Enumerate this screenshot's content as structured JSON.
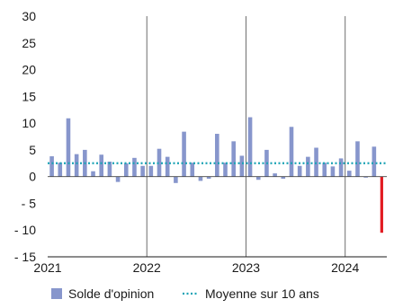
{
  "chart_data": {
    "type": "bar",
    "title": "",
    "xlabel": "",
    "ylabel": "",
    "ylim": [
      -15,
      30
    ],
    "yticks": [
      30,
      25,
      20,
      15,
      10,
      5,
      0,
      -5,
      -10,
      -15
    ],
    "ytick_labels": [
      "30",
      "25",
      "20",
      "15",
      "10",
      "5",
      "0",
      "- 5",
      "- 10",
      "- 15"
    ],
    "xlim": [
      2021,
      2024.42
    ],
    "xticks": [
      2021,
      2022,
      2023,
      2024
    ],
    "xtick_labels": [
      "2021",
      "2022",
      "2023",
      "2024"
    ],
    "grid": "vertical lines at year boundaries",
    "legend_position": "bottom",
    "x": [
      "2021-01",
      "2021-02",
      "2021-03",
      "2021-04",
      "2021-05",
      "2021-06",
      "2021-07",
      "2021-08",
      "2021-09",
      "2021-10",
      "2021-11",
      "2021-12",
      "2022-01",
      "2022-02",
      "2022-03",
      "2022-04",
      "2022-05",
      "2022-06",
      "2022-07",
      "2022-08",
      "2022-09",
      "2022-10",
      "2022-11",
      "2022-12",
      "2023-01",
      "2023-02",
      "2023-03",
      "2023-04",
      "2023-05",
      "2023-06",
      "2023-07",
      "2023-08",
      "2023-09",
      "2023-10",
      "2023-11",
      "2023-12",
      "2024-01",
      "2024-02",
      "2024-03",
      "2024-04",
      "2024-05"
    ],
    "series": [
      {
        "name": "Solde d'opinion",
        "type": "bar",
        "color": "#8796cc",
        "last_bar_color": "#e21b22",
        "values": [
          3.8,
          2.6,
          10.9,
          4.2,
          5.0,
          1.0,
          4.1,
          2.8,
          -1.0,
          2.5,
          3.5,
          2.0,
          2.0,
          5.2,
          3.7,
          -1.2,
          8.4,
          2.6,
          -0.8,
          -0.4,
          8.0,
          2.6,
          6.6,
          3.9,
          11.1,
          -0.6,
          5.0,
          0.6,
          -0.4,
          9.3,
          2.0,
          3.7,
          5.4,
          2.6,
          1.9,
          3.4,
          1.1,
          6.6,
          -0.2,
          5.6,
          -10.5
        ]
      },
      {
        "name": "Moyenne sur 10 ans",
        "type": "line",
        "style": "dotted",
        "color": "#1ba3b5",
        "value": 2.5
      }
    ]
  },
  "legend": [
    {
      "label": "Solde d'opinion",
      "color": "#8796cc",
      "marker": "square"
    },
    {
      "label": "Moyenne sur 10 ans",
      "color": "#1ba3b5",
      "marker": "dotted-line"
    }
  ]
}
